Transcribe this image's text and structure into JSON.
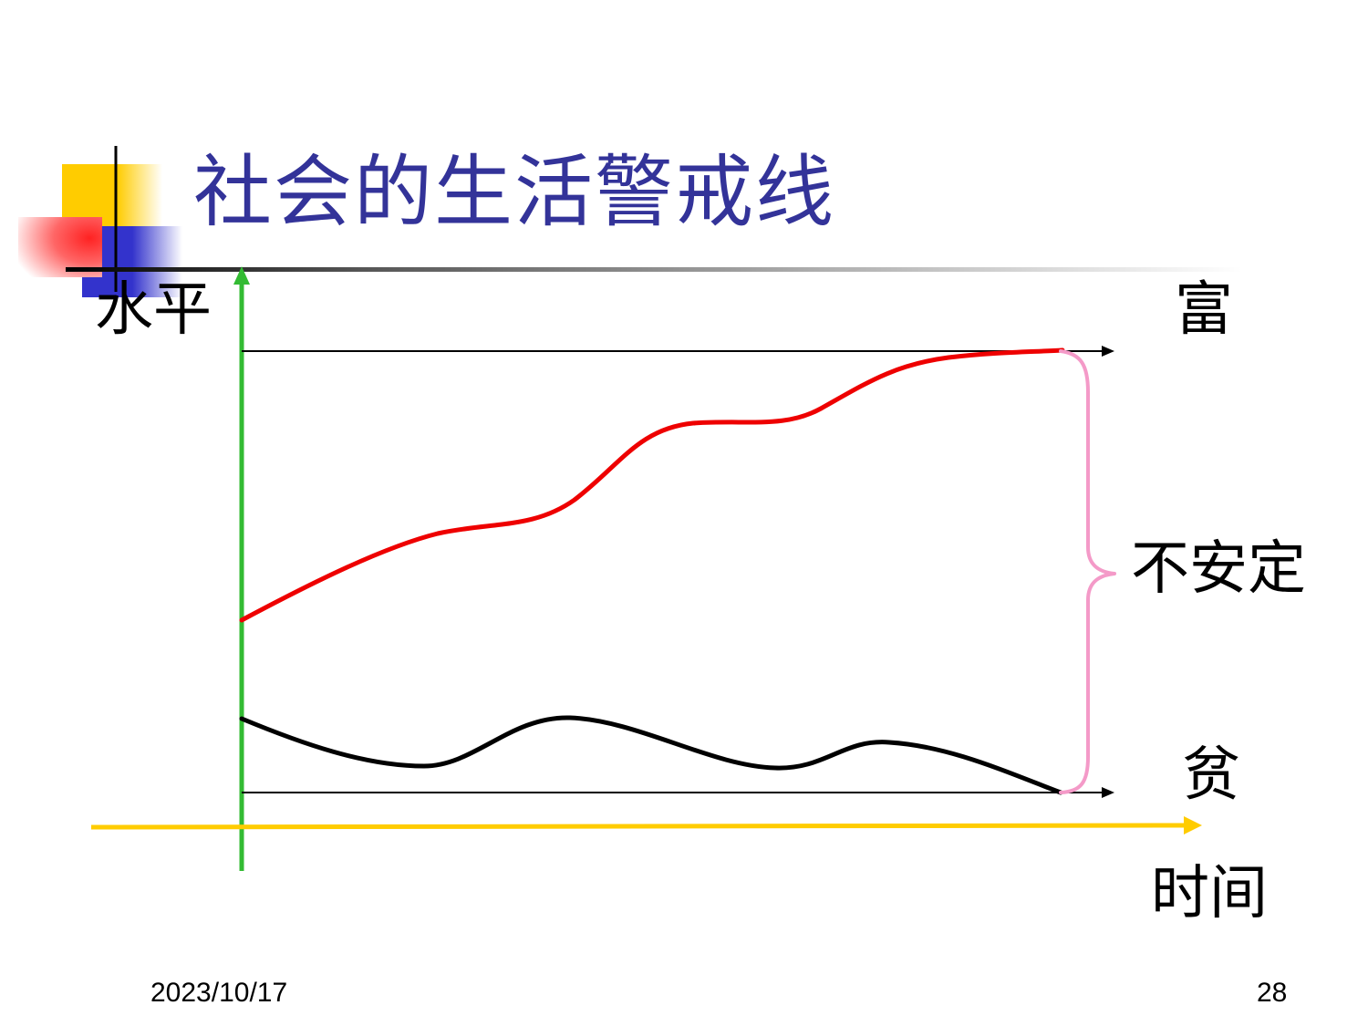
{
  "slide": {
    "title": "社会的生活警戒线",
    "footer": {
      "date": "2023/10/17",
      "page_number": "28"
    }
  },
  "diagram": {
    "y_axis_label": "水平",
    "x_axis_label": "时间",
    "top_line_label": "富",
    "bottom_line_label": "贫",
    "range_label": "不安定"
  },
  "colors": {
    "title": "#333399",
    "y_axis": "#33BB33",
    "x_axis": "#FFCC00",
    "rich_curve": "#EE0000",
    "poor_curve": "#000000",
    "brace": "#F49AC8",
    "deco_yellow": "#FFCC00",
    "deco_red": "#FF3333",
    "deco_blue": "#3333CC"
  }
}
